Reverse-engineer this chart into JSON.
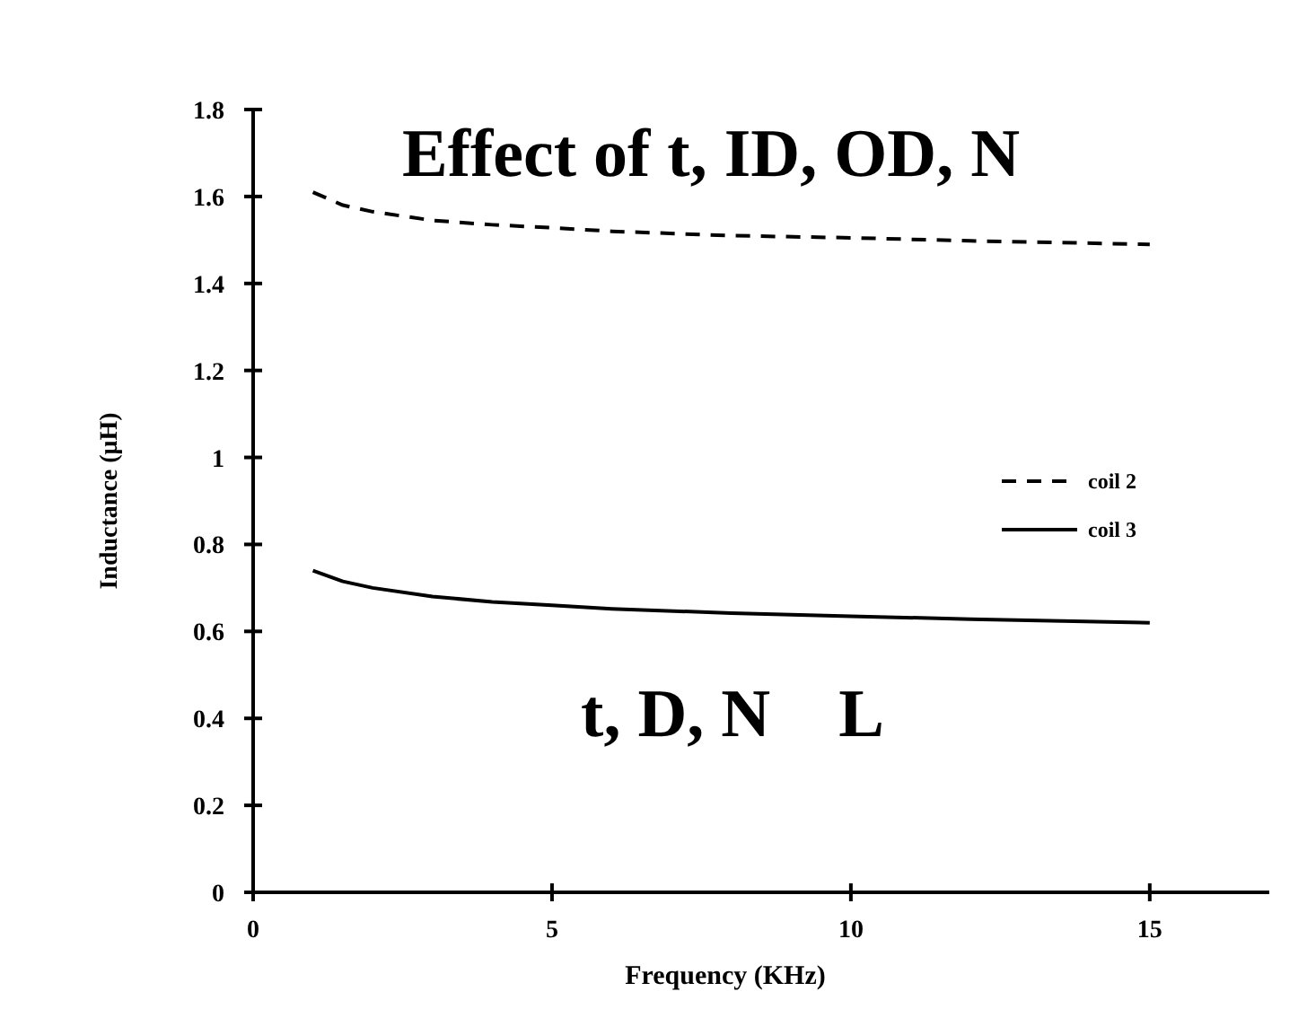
{
  "chart_data": {
    "type": "line",
    "title": "Effect of t, ID, OD, N",
    "xlabel": "Frequency (KHz)",
    "ylabel": "Inductance (μH)",
    "annotations": [
      "t, D, N    L"
    ],
    "x": [
      1,
      1.5,
      2,
      3,
      4,
      5,
      6,
      8,
      10,
      12,
      15
    ],
    "series": [
      {
        "name": "coil 2",
        "color": "#000000",
        "line_style": "dashed",
        "values": [
          1.61,
          1.58,
          1.565,
          1.545,
          1.535,
          1.528,
          1.52,
          1.51,
          1.505,
          1.498,
          1.49
        ]
      },
      {
        "name": "coil 3",
        "color": "#000000",
        "line_style": "solid",
        "values": [
          0.74,
          0.715,
          0.7,
          0.68,
          0.668,
          0.66,
          0.652,
          0.642,
          0.635,
          0.628,
          0.62
        ]
      }
    ],
    "xlim": [
      0,
      17
    ],
    "xticks": [
      0,
      5,
      10,
      15
    ],
    "ylim": [
      0,
      1.8
    ],
    "yticks": [
      0,
      0.2,
      0.4,
      0.6,
      0.8,
      1,
      1.2,
      1.4,
      1.6,
      1.8
    ],
    "grid": false,
    "legend": "right",
    "marker": "none"
  }
}
